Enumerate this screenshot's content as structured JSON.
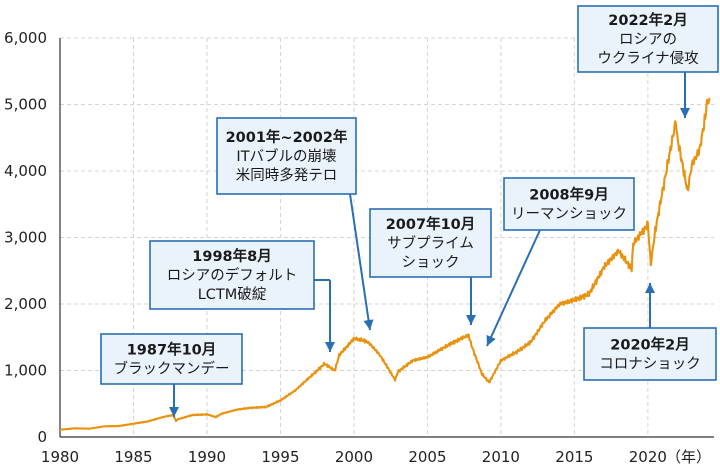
{
  "chart_data": {
    "type": "line",
    "title": "",
    "xlabel": "（年）",
    "ylabel": "",
    "xlim": [
      1980,
      2024.5
    ],
    "ylim": [
      0,
      6000
    ],
    "x_ticks": [
      1980,
      1985,
      1990,
      1995,
      2000,
      2005,
      2010,
      2015,
      2020
    ],
    "x_tick_labels": [
      "1980",
      "1985",
      "1990",
      "1995",
      "2000",
      "2005",
      "2010",
      "2015",
      "2020"
    ],
    "y_ticks": [
      0,
      1000,
      2000,
      3000,
      4000,
      5000,
      6000
    ],
    "y_tick_labels": [
      "0",
      "1,000",
      "2,000",
      "3,000",
      "4,000",
      "5,000",
      "6,000"
    ],
    "grid": true,
    "legend": false,
    "colors": {
      "line": "#e8920f",
      "annotation": "#2a6fb4",
      "annotation_fill": "#eaf3fb"
    },
    "series": [
      {
        "x": [
          1980,
          1981,
          1982,
          1983,
          1984,
          1985,
          1986,
          1987,
          1987.7,
          1987.9,
          1988,
          1989,
          1990,
          1990.6,
          1991,
          1992,
          1993,
          1994,
          1995,
          1996,
          1997,
          1998,
          1998.7,
          1999,
          2000,
          2000.7,
          2001,
          2001.7,
          2002,
          2002.8,
          2003,
          2004,
          2005,
          2006,
          2007,
          2007.8,
          2008,
          2008.7,
          2009.2,
          2010,
          2011,
          2012,
          2013,
          2014,
          2015,
          2016,
          2017,
          2018,
          2018.9,
          2019,
          2020,
          2020.2,
          2020.5,
          2021,
          2021.9,
          2022,
          2022.7,
          2023,
          2023.5,
          2023.9,
          2024,
          2024.2
        ],
        "y": [
          110,
          130,
          125,
          160,
          165,
          200,
          235,
          300,
          330,
          240,
          265,
          330,
          340,
          300,
          350,
          410,
          440,
          450,
          550,
          700,
          900,
          1100,
          1000,
          1230,
          1480,
          1450,
          1420,
          1250,
          1150,
          860,
          980,
          1150,
          1200,
          1330,
          1450,
          1530,
          1380,
          950,
          820,
          1150,
          1270,
          1420,
          1750,
          2000,
          2060,
          2150,
          2550,
          2800,
          2520,
          2900,
          3200,
          2600,
          3100,
          3700,
          4750,
          4500,
          3700,
          4100,
          4300,
          4800,
          5000,
          5100
        ]
      }
    ],
    "annotations": [
      {
        "lines": [
          "1987年10月",
          "ブラックマンデー"
        ]
      },
      {
        "lines": [
          "1998年8月",
          "ロシアのデフォルト",
          "LCTM破綻"
        ]
      },
      {
        "lines": [
          "2001年~2002年",
          "ITバブルの崩壊",
          "米同時多発テロ"
        ]
      },
      {
        "lines": [
          "2007年10月",
          "サブプライム",
          "ショック"
        ]
      },
      {
        "lines": [
          "2008年9月",
          "リーマンショック"
        ]
      },
      {
        "lines": [
          "2020年2月",
          "コロナショック"
        ]
      },
      {
        "lines": [
          "2022年2月",
          "ロシアの",
          "ウクライナ侵攻"
        ]
      }
    ]
  }
}
